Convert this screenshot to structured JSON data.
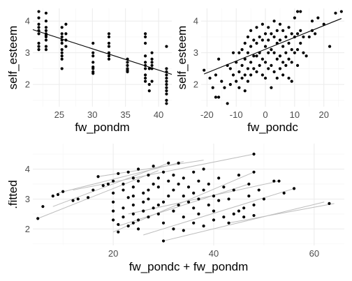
{
  "chart_data": [
    {
      "type": "scatter",
      "xlabel": "fw_pondm",
      "ylabel": "self_esteem",
      "xlim": [
        21,
        42
      ],
      "ylim": [
        1.3,
        4.4
      ],
      "xticks": [
        25,
        30,
        35,
        40
      ],
      "yticks": [
        2,
        3,
        4
      ],
      "grid": true,
      "points": [
        [
          21.9,
          4.3
        ],
        [
          21.9,
          4.1
        ],
        [
          21.9,
          3.9
        ],
        [
          21.9,
          3.8
        ],
        [
          21.9,
          3.7
        ],
        [
          21.9,
          3.6
        ],
        [
          21.9,
          3.3
        ],
        [
          21.9,
          3.2
        ],
        [
          21.9,
          3.1
        ],
        [
          23.0,
          4.25
        ],
        [
          23.0,
          4.0
        ],
        [
          23.0,
          3.8
        ],
        [
          23.0,
          3.7
        ],
        [
          23.0,
          3.6
        ],
        [
          23.0,
          3.55
        ],
        [
          23.0,
          3.5
        ],
        [
          23.0,
          3.4
        ],
        [
          23.0,
          3.2
        ],
        [
          23.0,
          3.1
        ],
        [
          25.4,
          3.8
        ],
        [
          25.4,
          3.6
        ],
        [
          25.4,
          3.5
        ],
        [
          25.4,
          3.4
        ],
        [
          25.4,
          3.3
        ],
        [
          25.4,
          3.1
        ],
        [
          25.4,
          3.0
        ],
        [
          25.4,
          2.9
        ],
        [
          25.4,
          2.8
        ],
        [
          25.4,
          2.5
        ],
        [
          26.0,
          3.9
        ],
        [
          26.0,
          3.6
        ],
        [
          26.0,
          3.4
        ],
        [
          26.0,
          3.2
        ],
        [
          30.1,
          3.3
        ],
        [
          30.1,
          3.0
        ],
        [
          30.1,
          2.9
        ],
        [
          30.1,
          2.7
        ],
        [
          30.1,
          2.55
        ],
        [
          30.1,
          2.5
        ],
        [
          30.1,
          2.4
        ],
        [
          30.1,
          2.35
        ],
        [
          32.5,
          3.6
        ],
        [
          32.5,
          3.5
        ],
        [
          32.5,
          3.3
        ],
        [
          32.5,
          3.2
        ],
        [
          32.5,
          3.0
        ],
        [
          32.5,
          2.9
        ],
        [
          32.5,
          2.8
        ],
        [
          35.3,
          2.8
        ],
        [
          35.3,
          2.7
        ],
        [
          35.3,
          2.6
        ],
        [
          35.3,
          2.5
        ],
        [
          35.3,
          2.45
        ],
        [
          35.3,
          2.4
        ],
        [
          38.0,
          3.6
        ],
        [
          38.0,
          3.5
        ],
        [
          38.0,
          3.3
        ],
        [
          38.0,
          2.9
        ],
        [
          38.0,
          2.7
        ],
        [
          38.0,
          2.6
        ],
        [
          38.0,
          2.5
        ],
        [
          38.0,
          2.3
        ],
        [
          38.0,
          2.2
        ],
        [
          38.0,
          2.1
        ],
        [
          38.6,
          2.5
        ],
        [
          38.6,
          2.0
        ],
        [
          38.6,
          1.8
        ],
        [
          39.0,
          3.0
        ],
        [
          39.0,
          2.8
        ],
        [
          39.0,
          2.7
        ],
        [
          39.0,
          2.6
        ],
        [
          39.0,
          2.5
        ],
        [
          39.0,
          2.1
        ],
        [
          41.2,
          3.2
        ],
        [
          41.2,
          2.5
        ],
        [
          41.2,
          2.4
        ],
        [
          41.2,
          2.3
        ],
        [
          41.2,
          2.2
        ],
        [
          41.2,
          2.1
        ],
        [
          41.2,
          2.0
        ],
        [
          41.2,
          1.9
        ],
        [
          41.2,
          1.8
        ],
        [
          41.2,
          1.7
        ],
        [
          41.2,
          1.5
        ],
        [
          41.2,
          1.4
        ]
      ],
      "regression": {
        "x": [
          21,
          42
        ],
        "y": [
          3.73,
          2.32
        ]
      }
    },
    {
      "type": "scatter",
      "xlabel": "fw_pondc",
      "ylabel": "self_esteem",
      "xlim": [
        -22,
        27
      ],
      "ylim": [
        1.3,
        4.4
      ],
      "xticks": [
        -20,
        -10,
        0,
        10,
        20
      ],
      "yticks": [
        2,
        3,
        4
      ],
      "grid": true,
      "points": [
        [
          -21,
          2.45
        ],
        [
          -19,
          2.2
        ],
        [
          -18,
          1.9
        ],
        [
          -17,
          1.6
        ],
        [
          -17,
          2.3
        ],
        [
          -16,
          2.8
        ],
        [
          -16,
          1.6
        ],
        [
          -15,
          2.1
        ],
        [
          -14,
          1.9
        ],
        [
          -13,
          1.4
        ],
        [
          -13,
          2.6
        ],
        [
          -12,
          2.5
        ],
        [
          -12,
          2.0
        ],
        [
          -11,
          3.0
        ],
        [
          -11,
          2.3
        ],
        [
          -10,
          2.7
        ],
        [
          -10,
          2.1
        ],
        [
          -9,
          3.0
        ],
        [
          -9,
          2.4
        ],
        [
          -9,
          1.9
        ],
        [
          -8,
          3.1
        ],
        [
          -8,
          2.6
        ],
        [
          -8,
          2.2
        ],
        [
          -7,
          3.3
        ],
        [
          -7,
          2.8
        ],
        [
          -7,
          2.3
        ],
        [
          -7,
          1.8
        ],
        [
          -6,
          3.5
        ],
        [
          -6,
          3.0
        ],
        [
          -6,
          2.5
        ],
        [
          -6,
          2.1
        ],
        [
          -5,
          3.7
        ],
        [
          -5,
          3.2
        ],
        [
          -5,
          2.7
        ],
        [
          -5,
          2.3
        ],
        [
          -4,
          3.4
        ],
        [
          -4,
          2.9
        ],
        [
          -4,
          2.5
        ],
        [
          -3,
          3.8
        ],
        [
          -3,
          3.3
        ],
        [
          -3,
          2.9
        ],
        [
          -3,
          2.4
        ],
        [
          -2,
          3.5
        ],
        [
          -2,
          3.0
        ],
        [
          -2,
          2.6
        ],
        [
          -1,
          3.9
        ],
        [
          -1,
          3.4
        ],
        [
          -1,
          2.8
        ],
        [
          -1,
          2.3
        ],
        [
          0,
          3.6
        ],
        [
          0,
          3.2
        ],
        [
          0,
          2.7
        ],
        [
          0,
          2.2
        ],
        [
          1,
          3.8
        ],
        [
          1,
          3.4
        ],
        [
          1,
          3.0
        ],
        [
          1,
          2.5
        ],
        [
          2,
          3.6
        ],
        [
          2,
          3.1
        ],
        [
          2,
          2.6
        ],
        [
          2,
          1.9
        ],
        [
          3,
          4.0
        ],
        [
          3,
          3.5
        ],
        [
          3,
          3.0
        ],
        [
          3,
          2.4
        ],
        [
          4,
          3.7
        ],
        [
          4,
          3.3
        ],
        [
          4,
          2.8
        ],
        [
          4,
          2.2
        ],
        [
          5,
          3.9
        ],
        [
          5,
          3.4
        ],
        [
          5,
          2.9
        ],
        [
          5,
          2.5
        ],
        [
          6,
          3.7
        ],
        [
          6,
          3.2
        ],
        [
          6,
          2.7
        ],
        [
          6,
          2.3
        ],
        [
          7,
          3.5
        ],
        [
          7,
          3.0
        ],
        [
          7,
          2.6
        ],
        [
          8,
          3.8
        ],
        [
          8,
          3.3
        ],
        [
          8,
          2.8
        ],
        [
          8,
          2.2
        ],
        [
          9,
          3.6
        ],
        [
          9,
          3.1
        ],
        [
          9,
          2.7
        ],
        [
          9,
          2.1
        ],
        [
          10,
          4.1
        ],
        [
          10,
          3.5
        ],
        [
          10,
          3.0
        ],
        [
          11,
          4.3
        ],
        [
          11,
          3.6
        ],
        [
          11,
          3.1
        ],
        [
          11,
          2.6
        ],
        [
          12,
          4.3
        ],
        [
          12,
          3.7
        ],
        [
          12,
          3.3
        ],
        [
          13,
          3.5
        ],
        [
          13,
          3.0
        ],
        [
          14,
          2.9
        ],
        [
          15,
          3.5
        ],
        [
          16,
          4.0
        ],
        [
          16,
          3.7
        ],
        [
          17,
          3.6
        ],
        [
          18,
          4.1
        ],
        [
          20,
          3.9
        ],
        [
          22,
          3.2
        ],
        [
          24,
          4.25
        ],
        [
          26,
          4.3
        ]
      ],
      "regression": {
        "x": [
          -21,
          26
        ],
        "y": [
          2.33,
          4.08
        ]
      }
    },
    {
      "type": "line",
      "xlabel": "fw_pondc + fw_pondm",
      "ylabel": ".fitted",
      "xlim": [
        4,
        66
      ],
      "ylim": [
        1.45,
        4.85
      ],
      "xticks": [
        20,
        40,
        60
      ],
      "yticks": [
        2,
        3,
        4
      ],
      "grid": true,
      "lines": [
        {
          "x": [
            5,
            29
          ],
          "y": [
            2.35,
            3.95
          ]
        },
        {
          "x": [
            8,
            31
          ],
          "y": [
            2.75,
            4.2
          ]
        },
        {
          "x": [
            9,
            34
          ],
          "y": [
            3.2,
            4.25
          ]
        },
        {
          "x": [
            12,
            48
          ],
          "y": [
            3.3,
            4.5
          ]
        },
        {
          "x": [
            17,
            38
          ],
          "y": [
            3.75,
            4.3
          ]
        },
        {
          "x": [
            20,
            48
          ],
          "y": [
            1.9,
            3.9
          ]
        },
        {
          "x": [
            21,
            47
          ],
          "y": [
            2.1,
            3.5
          ]
        },
        {
          "x": [
            23,
            53
          ],
          "y": [
            2.5,
            3.6
          ]
        },
        {
          "x": [
            26,
            56
          ],
          "y": [
            1.8,
            3.35
          ]
        },
        {
          "x": [
            30,
            62
          ],
          "y": [
            1.6,
            2.9
          ]
        },
        {
          "x": [
            43,
            64
          ],
          "y": [
            2.2,
            2.85
          ]
        }
      ],
      "points": [
        [
          5,
          2.35
        ],
        [
          6,
          2.75
        ],
        [
          8,
          3.1
        ],
        [
          9,
          3.15
        ],
        [
          10,
          3.25
        ],
        [
          12,
          2.95
        ],
        [
          13,
          3.0
        ],
        [
          15,
          3.05
        ],
        [
          16,
          3.3
        ],
        [
          17,
          3.75
        ],
        [
          18,
          3.45
        ],
        [
          19,
          3.5
        ],
        [
          20,
          2.3
        ],
        [
          20,
          2.6
        ],
        [
          20,
          2.9
        ],
        [
          20,
          3.2
        ],
        [
          20,
          3.6
        ],
        [
          21,
          1.9
        ],
        [
          21,
          2.15
        ],
        [
          21,
          3.85
        ],
        [
          22,
          2.4
        ],
        [
          22,
          2.7
        ],
        [
          22,
          3.3
        ],
        [
          22,
          3.5
        ],
        [
          23,
          2.1
        ],
        [
          23,
          3.05
        ],
        [
          23,
          3.9
        ],
        [
          24,
          2.2
        ],
        [
          24,
          2.5
        ],
        [
          24,
          2.8
        ],
        [
          24,
          3.1
        ],
        [
          24,
          3.4
        ],
        [
          24,
          3.7
        ],
        [
          25,
          2.0
        ],
        [
          25,
          2.3
        ],
        [
          25,
          3.6
        ],
        [
          25,
          4.0
        ],
        [
          26,
          2.6
        ],
        [
          26,
          2.9
        ],
        [
          26,
          3.2
        ],
        [
          27,
          2.4
        ],
        [
          27,
          3.0
        ],
        [
          27,
          3.3
        ],
        [
          27,
          3.8
        ],
        [
          28,
          2.7
        ],
        [
          28,
          3.5
        ],
        [
          28,
          4.1
        ],
        [
          29,
          2.5
        ],
        [
          29,
          2.8
        ],
        [
          29,
          3.4
        ],
        [
          29,
          3.7
        ],
        [
          30,
          1.6
        ],
        [
          30,
          2.2
        ],
        [
          30,
          2.9
        ],
        [
          30,
          3.9
        ],
        [
          31,
          3.1
        ],
        [
          31,
          3.6
        ],
        [
          31,
          4.2
        ],
        [
          32,
          2.0
        ],
        [
          32,
          2.6
        ],
        [
          32,
          3.3
        ],
        [
          32,
          3.8
        ],
        [
          33,
          2.8
        ],
        [
          33,
          3.5
        ],
        [
          33,
          4.2
        ],
        [
          34,
          1.95
        ],
        [
          34,
          2.4
        ],
        [
          34,
          3.1
        ],
        [
          34,
          3.7
        ],
        [
          35,
          2.9
        ],
        [
          35,
          3.4
        ],
        [
          36,
          2.2
        ],
        [
          36,
          2.7
        ],
        [
          36,
          3.2
        ],
        [
          36,
          3.9
        ],
        [
          37,
          2.5
        ],
        [
          37,
          3.0
        ],
        [
          37,
          3.6
        ],
        [
          38,
          2.1
        ],
        [
          38,
          3.3
        ],
        [
          38,
          4.0
        ],
        [
          39,
          2.8
        ],
        [
          39,
          3.5
        ],
        [
          40,
          2.3
        ],
        [
          40,
          2.6
        ],
        [
          40,
          3.1
        ],
        [
          41,
          2.95
        ],
        [
          41,
          3.7
        ],
        [
          42,
          2.4
        ],
        [
          42,
          3.4
        ],
        [
          43,
          2.2
        ],
        [
          43,
          3.0
        ],
        [
          44,
          2.5
        ],
        [
          44,
          3.3
        ],
        [
          45,
          2.6
        ],
        [
          45,
          3.8
        ],
        [
          46,
          2.4
        ],
        [
          46,
          2.7
        ],
        [
          47,
          3.1
        ],
        [
          47,
          3.5
        ],
        [
          48,
          2.45
        ],
        [
          48,
          2.8
        ],
        [
          48,
          3.9
        ],
        [
          48,
          4.5
        ],
        [
          49,
          3.3
        ],
        [
          50,
          3.0
        ],
        [
          52,
          3.6
        ],
        [
          53,
          3.6
        ],
        [
          54,
          3.2
        ],
        [
          56,
          3.35
        ],
        [
          63,
          2.85
        ]
      ]
    }
  ]
}
